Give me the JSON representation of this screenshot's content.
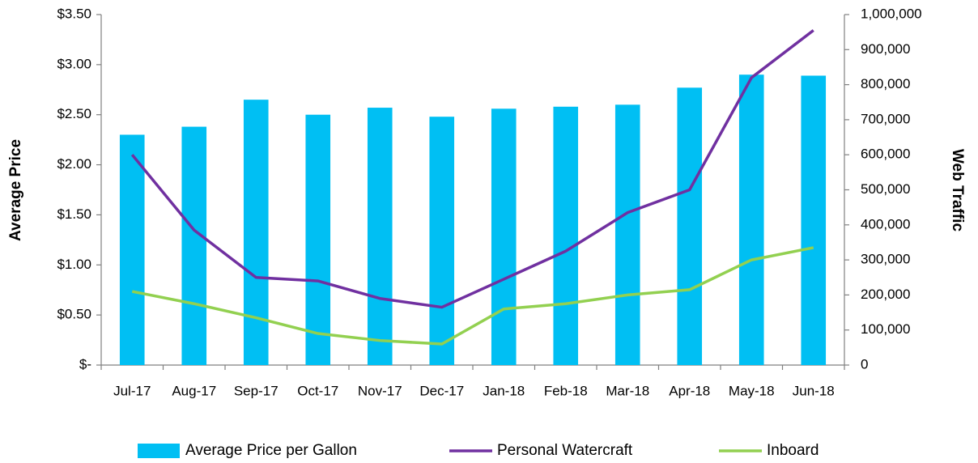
{
  "chart_data": {
    "type": "bar",
    "ylabel": "Average Price",
    "y2label": "Web Traffic",
    "categories": [
      "Jul-17",
      "Aug-17",
      "Sep-17",
      "Oct-17",
      "Nov-17",
      "Dec-17",
      "Jan-18",
      "Feb-18",
      "Mar-18",
      "Apr-18",
      "May-18",
      "Jun-18"
    ],
    "series": [
      {
        "name": "Average Price per Gallon",
        "type": "bar",
        "axis": "y",
        "color": "#00bff3",
        "values": [
          2.3,
          2.38,
          2.65,
          2.5,
          2.57,
          2.48,
          2.56,
          2.58,
          2.6,
          2.77,
          2.9,
          2.89
        ]
      },
      {
        "name": "Personal Watercraft",
        "type": "line",
        "axis": "y2",
        "color": "#7030a0",
        "values": [
          600000,
          385000,
          250000,
          240000,
          190000,
          165000,
          245000,
          325000,
          435000,
          500000,
          820000,
          955000
        ]
      },
      {
        "name": "Inboard",
        "type": "line",
        "axis": "y2",
        "color": "#92d050",
        "values": [
          210000,
          175000,
          135000,
          90000,
          70000,
          60000,
          160000,
          175000,
          200000,
          215000,
          300000,
          335000
        ]
      }
    ],
    "ylim": [
      0,
      3.5
    ],
    "yticks": [
      {
        "value": 0,
        "label": "$-"
      },
      {
        "value": 0.5,
        "label": "$0.50"
      },
      {
        "value": 1,
        "label": "$1.00"
      },
      {
        "value": 1.5,
        "label": "$1.50"
      },
      {
        "value": 2,
        "label": "$2.00"
      },
      {
        "value": 2.5,
        "label": "$2.50"
      },
      {
        "value": 3,
        "label": "$3.00"
      },
      {
        "value": 3.5,
        "label": "$3.50"
      }
    ],
    "y2lim": [
      0,
      1000000
    ],
    "y2ticks": [
      0,
      {
        "value": 100000,
        "label": "100,000"
      },
      {
        "value": 200000,
        "label": "200,000"
      },
      {
        "value": 300000,
        "label": "300,000"
      },
      {
        "value": 400000,
        "label": "400,000"
      },
      {
        "value": 500000,
        "label": "500,000"
      },
      {
        "value": 600000,
        "label": "600,000"
      },
      {
        "value": 700000,
        "label": "700,000"
      },
      {
        "value": 800000,
        "label": "800,000"
      },
      {
        "value": 900000,
        "label": "900,000"
      },
      {
        "value": 1000000,
        "label": "1,000,000"
      }
    ],
    "grid": false,
    "legend": "bottom"
  }
}
